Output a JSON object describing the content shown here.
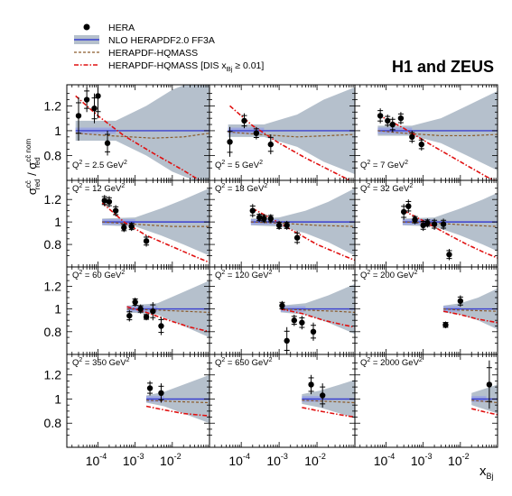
{
  "title": "H1 and ZEUS",
  "legend": {
    "placement": "top-left",
    "items": [
      {
        "label": "HERA",
        "style": "marker"
      },
      {
        "label": "NLO HERAPDF2.0 FF3A",
        "style": "band"
      },
      {
        "label": "HERAPDF-HQMASS",
        "style": "dashed"
      },
      {
        "label": "HERAPDF-HQMASS [DIS x",
        "sub": "Bj",
        "rest": " ≥ 0.01]",
        "style": "dashdot"
      }
    ]
  },
  "axes": {
    "ylabel": {
      "sigma": "σ",
      "sup1": "cc̄",
      "sub1": "red",
      "slash": " / σ",
      "sup2": "cc̄ nom",
      "sub2": "red"
    },
    "xlabel": {
      "main": "x",
      "sub": "Bj"
    },
    "x_scale": "log",
    "xlim": [
      1.45e-05,
      0.1
    ],
    "ylim": [
      0.6,
      1.37
    ],
    "yticks": [
      "0.8",
      "1",
      "1.2"
    ],
    "yticks_values": [
      0.8,
      1.0,
      1.2
    ],
    "xticks": [
      {
        "base": "10",
        "exp": "-4"
      },
      {
        "base": "10",
        "exp": "-3"
      },
      {
        "base": "10",
        "exp": "-2"
      }
    ],
    "xticks_values": [
      0.0001,
      0.001,
      0.01
    ]
  },
  "colors": {
    "band_fill": "#b5c0cc",
    "inner_band": "#9ea8de",
    "central_line": "#3a40cf",
    "dashed": "#8a5a2a",
    "dashdot": "#e01010",
    "data": "#000000"
  },
  "chart_data": {
    "type": "scatter",
    "panels": [
      {
        "q2": "2.5",
        "points": [
          {
            "x": 3e-05,
            "y": 1.12,
            "err": 0.15,
            "errlo": 0.2
          },
          {
            "x": 5e-05,
            "y": 1.25,
            "err": 0.1
          },
          {
            "x": 8e-05,
            "y": 1.18,
            "err": 0.12
          },
          {
            "x": 0.0001,
            "y": 1.28,
            "err": 0.18
          },
          {
            "x": 0.00018,
            "y": 0.9,
            "err": 0.1
          }
        ],
        "band": [
          [
            2.5e-05,
            0.08
          ],
          [
            0.0003,
            0.08
          ],
          [
            0.002,
            0.2
          ],
          [
            0.01,
            0.33
          ],
          [
            0.1,
            0.45
          ]
        ],
        "cut_off": false,
        "dashed": [
          [
            2.5e-05,
            0.98
          ],
          [
            0.0002,
            0.96
          ],
          [
            0.003,
            0.94
          ],
          [
            0.02,
            0.95
          ],
          [
            0.1,
            0.98
          ]
        ],
        "dashdot": [
          [
            2.5e-05,
            1.28
          ],
          [
            0.0001,
            1.12
          ],
          [
            0.0005,
            0.96
          ],
          [
            0.003,
            0.82
          ],
          [
            0.02,
            0.68
          ],
          [
            0.1,
            0.55
          ]
        ]
      },
      {
        "q2": "5",
        "points": [
          {
            "x": 5e-05,
            "y": 0.91,
            "err": 0.12
          },
          {
            "x": 0.00012,
            "y": 1.08,
            "err": 0.06
          },
          {
            "x": 0.00025,
            "y": 0.98,
            "err": 0.05
          },
          {
            "x": 0.0006,
            "y": 0.89,
            "err": 0.08
          }
        ],
        "band": [
          [
            4.5e-05,
            0.05
          ],
          [
            0.0004,
            0.05
          ],
          [
            0.003,
            0.13
          ],
          [
            0.015,
            0.25
          ],
          [
            0.1,
            0.35
          ]
        ],
        "cut_off": false,
        "dashed": [
          [
            4.5e-05,
            0.99
          ],
          [
            0.0003,
            0.97
          ],
          [
            0.003,
            0.95
          ],
          [
            0.02,
            0.96
          ],
          [
            0.1,
            0.97
          ]
        ],
        "dashdot": [
          [
            5e-05,
            1.2
          ],
          [
            0.0002,
            1.04
          ],
          [
            0.001,
            0.9
          ],
          [
            0.005,
            0.78
          ],
          [
            0.03,
            0.66
          ],
          [
            0.1,
            0.58
          ]
        ]
      },
      {
        "q2": "7",
        "points": [
          {
            "x": 7e-05,
            "y": 1.12,
            "err": 0.06
          },
          {
            "x": 0.00011,
            "y": 1.08,
            "err": 0.05
          },
          {
            "x": 0.00015,
            "y": 1.05,
            "err": 0.06
          },
          {
            "x": 0.00025,
            "y": 1.1,
            "err": 0.05
          },
          {
            "x": 0.0005,
            "y": 0.95,
            "err": 0.05
          },
          {
            "x": 0.0009,
            "y": 0.89,
            "err": 0.05
          }
        ],
        "band": [
          [
            6e-05,
            0.04
          ],
          [
            0.0005,
            0.04
          ],
          [
            0.003,
            0.1
          ],
          [
            0.015,
            0.2
          ],
          [
            0.1,
            0.32
          ]
        ],
        "cut_off": false,
        "dashed": [
          [
            6e-05,
            1.0
          ],
          [
            0.0003,
            0.98
          ],
          [
            0.003,
            0.96
          ],
          [
            0.02,
            0.96
          ],
          [
            0.1,
            0.97
          ]
        ],
        "dashdot": [
          [
            6e-05,
            1.13
          ],
          [
            0.0003,
            1.02
          ],
          [
            0.002,
            0.87
          ],
          [
            0.01,
            0.75
          ],
          [
            0.05,
            0.63
          ],
          [
            0.1,
            0.59
          ]
        ]
      },
      {
        "q2": "12",
        "points": [
          {
            "x": 0.00015,
            "y": 1.19,
            "err": 0.05
          },
          {
            "x": 0.0002,
            "y": 1.18,
            "err": 0.05
          },
          {
            "x": 0.0003,
            "y": 1.1,
            "err": 0.05
          },
          {
            "x": 0.0005,
            "y": 0.95,
            "err": 0.04
          },
          {
            "x": 0.0008,
            "y": 0.96,
            "err": 0.04
          },
          {
            "x": 0.002,
            "y": 0.83,
            "err": 0.05
          }
        ],
        "band": [
          [
            0.00013,
            0.03
          ],
          [
            0.001,
            0.04
          ],
          [
            0.005,
            0.12
          ],
          [
            0.02,
            0.2
          ],
          [
            0.1,
            0.3
          ]
        ],
        "cut_off": false,
        "dashed": [
          [
            0.00013,
            1.0
          ],
          [
            0.001,
            0.98
          ],
          [
            0.01,
            0.96
          ],
          [
            0.1,
            0.96
          ]
        ],
        "dashdot": [
          [
            0.00013,
            1.17
          ],
          [
            0.0005,
            1.0
          ],
          [
            0.002,
            0.88
          ],
          [
            0.01,
            0.78
          ],
          [
            0.05,
            0.68
          ],
          [
            0.1,
            0.64
          ]
        ]
      },
      {
        "q2": "18",
        "points": [
          {
            "x": 0.0002,
            "y": 1.1,
            "err": 0.06
          },
          {
            "x": 0.0003,
            "y": 1.04,
            "err": 0.04
          },
          {
            "x": 0.0004,
            "y": 1.03,
            "err": 0.04
          },
          {
            "x": 0.0006,
            "y": 1.03,
            "err": 0.04
          },
          {
            "x": 0.001,
            "y": 0.97,
            "err": 0.04
          },
          {
            "x": 0.0016,
            "y": 0.97,
            "err": 0.04
          },
          {
            "x": 0.003,
            "y": 0.86,
            "err": 0.06
          }
        ],
        "band": [
          [
            0.00018,
            0.03
          ],
          [
            0.001,
            0.04
          ],
          [
            0.005,
            0.1
          ],
          [
            0.02,
            0.18
          ],
          [
            0.1,
            0.3
          ]
        ],
        "cut_off": false,
        "dashed": [
          [
            0.00018,
            1.0
          ],
          [
            0.001,
            0.99
          ],
          [
            0.01,
            0.97
          ],
          [
            0.1,
            0.96
          ]
        ],
        "dashdot": [
          [
            0.0002,
            1.12
          ],
          [
            0.0008,
            1.01
          ],
          [
            0.003,
            0.9
          ],
          [
            0.01,
            0.8
          ],
          [
            0.05,
            0.7
          ],
          [
            0.1,
            0.66
          ]
        ]
      },
      {
        "q2": "32",
        "points": [
          {
            "x": 0.0003,
            "y": 1.09,
            "err": 0.07
          },
          {
            "x": 0.0004,
            "y": 1.14,
            "err": 0.06
          },
          {
            "x": 0.0006,
            "y": 1.02,
            "err": 0.04
          },
          {
            "x": 0.001,
            "y": 0.97,
            "err": 0.05
          },
          {
            "x": 0.0013,
            "y": 0.99,
            "err": 0.04
          },
          {
            "x": 0.002,
            "y": 0.98,
            "err": 0.05
          },
          {
            "x": 0.0035,
            "y": 0.98,
            "err": 0.05
          },
          {
            "x": 0.005,
            "y": 0.71,
            "err": 0.05
          }
        ],
        "band": [
          [
            0.00028,
            0.03
          ],
          [
            0.002,
            0.04
          ],
          [
            0.01,
            0.12
          ],
          [
            0.04,
            0.2
          ],
          [
            0.1,
            0.26
          ]
        ],
        "cut_off": false,
        "dashed": [
          [
            0.00028,
            1.0
          ],
          [
            0.002,
            0.99
          ],
          [
            0.02,
            0.97
          ],
          [
            0.1,
            0.96
          ]
        ],
        "dashdot": [
          [
            0.0003,
            1.1
          ],
          [
            0.001,
            1.01
          ],
          [
            0.004,
            0.9
          ],
          [
            0.015,
            0.8
          ],
          [
            0.05,
            0.72
          ],
          [
            0.1,
            0.68
          ]
        ]
      },
      {
        "q2": "60",
        "points": [
          {
            "x": 0.0007,
            "y": 0.94,
            "err": 0.05
          },
          {
            "x": 0.001,
            "y": 1.06,
            "err": 0.04
          },
          {
            "x": 0.0014,
            "y": 1.0,
            "err": 0.04
          },
          {
            "x": 0.002,
            "y": 0.93,
            "err": 0.03
          },
          {
            "x": 0.003,
            "y": 0.98,
            "err": 0.08
          },
          {
            "x": 0.005,
            "y": 0.85,
            "err": 0.08
          }
        ],
        "band": [
          [
            0.0006,
            0.03
          ],
          [
            0.004,
            0.05
          ],
          [
            0.02,
            0.15
          ],
          [
            0.1,
            0.25
          ]
        ],
        "cut_off": false,
        "dashed": [
          [
            0.0006,
            1.0
          ],
          [
            0.004,
            0.99
          ],
          [
            0.02,
            0.98
          ],
          [
            0.1,
            0.97
          ]
        ],
        "dashdot": [
          [
            0.0006,
            1.02
          ],
          [
            0.002,
            0.97
          ],
          [
            0.008,
            0.9
          ],
          [
            0.03,
            0.84
          ],
          [
            0.1,
            0.8
          ]
        ]
      },
      {
        "q2": "120",
        "points": [
          {
            "x": 0.0012,
            "y": 1.03,
            "err": 0.04
          },
          {
            "x": 0.0016,
            "y": 0.72,
            "err": 0.12
          },
          {
            "x": 0.0025,
            "y": 0.9,
            "err": 0.05
          },
          {
            "x": 0.004,
            "y": 0.88,
            "err": 0.06
          },
          {
            "x": 0.008,
            "y": 0.8,
            "err": 0.08
          }
        ],
        "band": [
          [
            0.0011,
            0.03
          ],
          [
            0.005,
            0.05
          ],
          [
            0.02,
            0.12
          ],
          [
            0.1,
            0.22
          ]
        ],
        "cut_off": false,
        "dashed": [
          [
            0.0011,
            1.0
          ],
          [
            0.005,
            0.99
          ],
          [
            0.03,
            0.98
          ],
          [
            0.1,
            0.97
          ]
        ],
        "dashdot": [
          [
            0.0011,
            1.0
          ],
          [
            0.004,
            0.96
          ],
          [
            0.015,
            0.9
          ],
          [
            0.05,
            0.86
          ],
          [
            0.1,
            0.84
          ]
        ]
      },
      {
        "q2": "200",
        "points": [
          {
            "x": 0.004,
            "y": 0.86,
            "err": 0.03
          },
          {
            "x": 0.01,
            "y": 1.07,
            "err": 0.05
          }
        ],
        "band": [
          [
            0.0035,
            0.03
          ],
          [
            0.01,
            0.05
          ],
          [
            0.03,
            0.1
          ],
          [
            0.1,
            0.18
          ]
        ],
        "cut_off": false,
        "dashed": [
          [
            0.0035,
            1.0
          ],
          [
            0.01,
            0.99
          ],
          [
            0.1,
            0.98
          ]
        ],
        "dashdot": [
          [
            0.0035,
            0.98
          ],
          [
            0.01,
            0.95
          ],
          [
            0.03,
            0.91
          ],
          [
            0.1,
            0.88
          ]
        ]
      },
      {
        "q2": "350",
        "points": [
          {
            "x": 0.0025,
            "y": 1.09,
            "err": 0.06
          },
          {
            "x": 0.005,
            "y": 1.05,
            "err": 0.08
          }
        ],
        "band": [
          [
            0.002,
            0.03
          ],
          [
            0.006,
            0.06
          ],
          [
            0.02,
            0.12
          ],
          [
            0.1,
            0.2
          ]
        ],
        "cut_off": false,
        "dashed": [
          [
            0.002,
            0.99
          ],
          [
            0.01,
            0.98
          ],
          [
            0.1,
            0.97
          ]
        ],
        "dashdot": [
          [
            0.002,
            0.94
          ],
          [
            0.006,
            0.91
          ],
          [
            0.02,
            0.88
          ],
          [
            0.1,
            0.86
          ]
        ]
      },
      {
        "q2": "650",
        "points": [
          {
            "x": 0.007,
            "y": 1.12,
            "err": 0.08
          },
          {
            "x": 0.014,
            "y": 1.03,
            "err": 0.1
          }
        ],
        "band": [
          [
            0.004,
            0.04
          ],
          [
            0.012,
            0.07
          ],
          [
            0.04,
            0.12
          ],
          [
            0.1,
            0.16
          ]
        ],
        "cut_off": false,
        "dashed": [
          [
            0.004,
            0.99
          ],
          [
            0.02,
            0.98
          ],
          [
            0.1,
            0.97
          ]
        ],
        "dashdot": [
          [
            0.004,
            0.93
          ],
          [
            0.012,
            0.9
          ],
          [
            0.04,
            0.87
          ],
          [
            0.1,
            0.85
          ]
        ]
      },
      {
        "q2": "2000",
        "points": [
          {
            "x": 0.06,
            "y": 1.12,
            "err": 0.2
          }
        ],
        "band": [
          [
            0.02,
            0.05
          ],
          [
            0.05,
            0.09
          ],
          [
            0.1,
            0.12
          ]
        ],
        "cut_off": false,
        "dashed": [
          [
            0.02,
            0.99
          ],
          [
            0.1,
            0.97
          ]
        ],
        "dashdot": [
          [
            0.02,
            0.92
          ],
          [
            0.05,
            0.89
          ],
          [
            0.1,
            0.87
          ]
        ]
      }
    ]
  }
}
